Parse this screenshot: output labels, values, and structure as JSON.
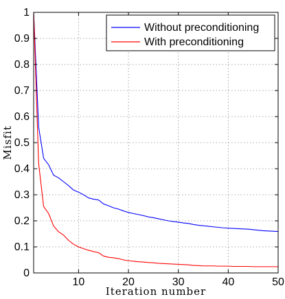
{
  "chart_data": {
    "type": "line",
    "title": "",
    "xlabel": "Iteration number",
    "ylabel": "Misfit",
    "xlim": [
      1,
      50
    ],
    "ylim": [
      0,
      1
    ],
    "xticks": [
      10,
      20,
      30,
      40,
      50
    ],
    "yticks": [
      0,
      0.1,
      0.2,
      0.3,
      0.4,
      0.5,
      0.6,
      0.7,
      0.8,
      0.9,
      1
    ],
    "grid": true,
    "legend_position": "top-right",
    "series": [
      {
        "name": "Without preconditioning",
        "color": "#0000ff",
        "x": [
          1,
          2,
          3,
          4,
          5,
          6,
          7,
          8,
          9,
          10,
          11,
          12,
          13,
          14,
          15,
          16,
          17,
          18,
          19,
          20,
          21,
          22,
          23,
          24,
          25,
          26,
          27,
          28,
          29,
          30,
          31,
          32,
          33,
          34,
          35,
          36,
          37,
          38,
          39,
          40,
          41,
          42,
          43,
          44,
          45,
          46,
          47,
          48,
          49,
          50
        ],
        "y": [
          1.0,
          0.56,
          0.44,
          0.415,
          0.375,
          0.365,
          0.35,
          0.335,
          0.318,
          0.31,
          0.3,
          0.288,
          0.283,
          0.28,
          0.265,
          0.258,
          0.25,
          0.245,
          0.238,
          0.232,
          0.228,
          0.224,
          0.22,
          0.215,
          0.212,
          0.208,
          0.204,
          0.2,
          0.197,
          0.195,
          0.192,
          0.19,
          0.186,
          0.183,
          0.181,
          0.179,
          0.177,
          0.175,
          0.173,
          0.172,
          0.171,
          0.17,
          0.169,
          0.168,
          0.166,
          0.164,
          0.162,
          0.161,
          0.16,
          0.159
        ]
      },
      {
        "name": "With preconditioning",
        "color": "#ff0000",
        "x": [
          1,
          2,
          3,
          4,
          5,
          6,
          7,
          8,
          9,
          10,
          11,
          12,
          13,
          14,
          15,
          16,
          17,
          18,
          19,
          20,
          21,
          22,
          23,
          24,
          25,
          26,
          27,
          28,
          29,
          30,
          31,
          32,
          33,
          34,
          35,
          36,
          37,
          38,
          39,
          40,
          41,
          42,
          43,
          44,
          45,
          46,
          47,
          48,
          49,
          50
        ],
        "y": [
          1.0,
          0.42,
          0.255,
          0.228,
          0.18,
          0.158,
          0.145,
          0.125,
          0.11,
          0.1,
          0.093,
          0.087,
          0.082,
          0.078,
          0.065,
          0.06,
          0.058,
          0.055,
          0.05,
          0.047,
          0.045,
          0.043,
          0.042,
          0.04,
          0.039,
          0.037,
          0.036,
          0.035,
          0.034,
          0.033,
          0.032,
          0.031,
          0.029,
          0.028,
          0.027,
          0.027,
          0.027,
          0.026,
          0.026,
          0.026,
          0.025,
          0.025,
          0.025,
          0.025,
          0.024,
          0.024,
          0.024,
          0.024,
          0.024,
          0.024
        ]
      }
    ]
  }
}
